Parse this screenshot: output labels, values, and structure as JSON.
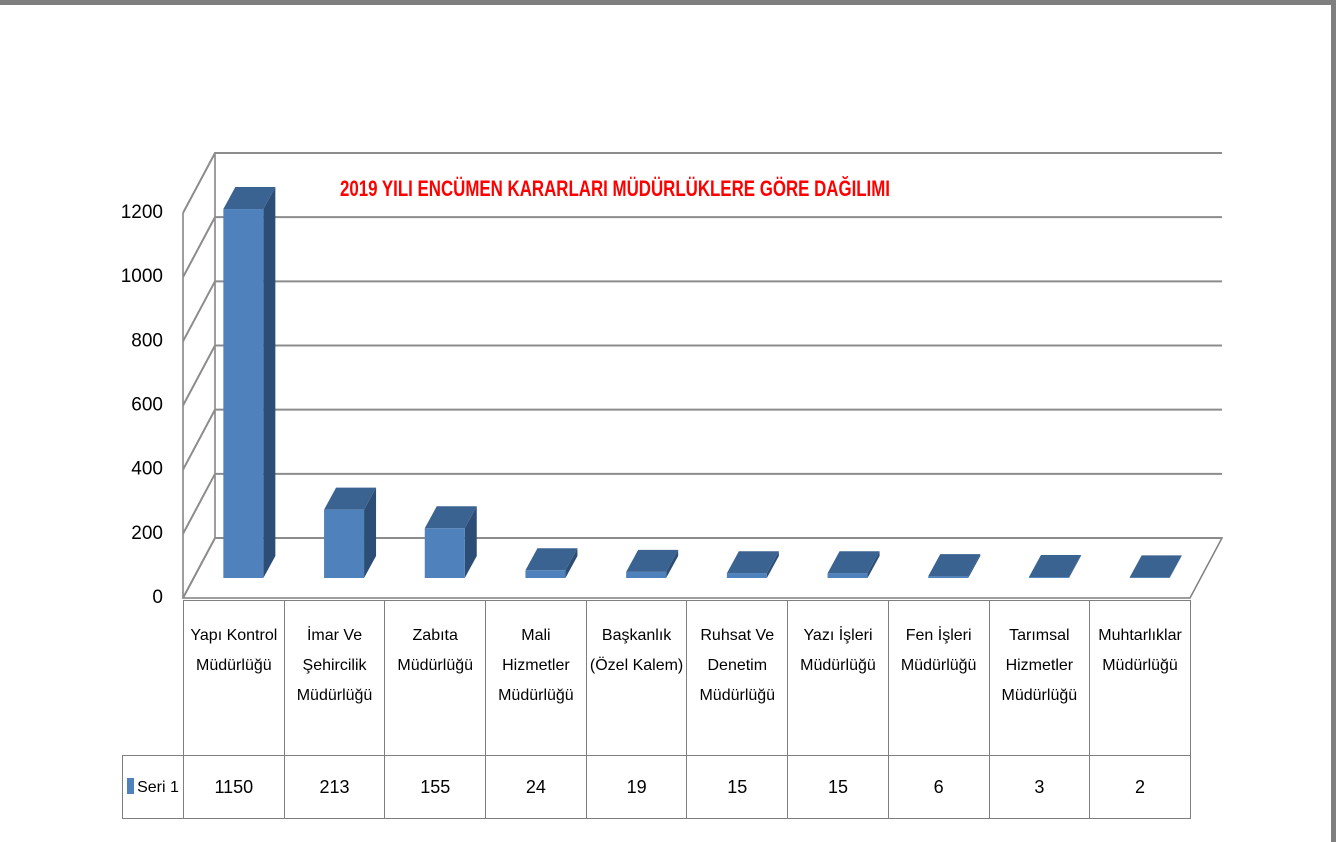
{
  "chart_data": {
    "type": "bar",
    "title": "2019 YILI ENCÜMEN KARARLARI MÜDÜRLÜKLERE GÖRE DAĞILIMI",
    "categories": [
      "Yapı Kontrol Müdürlüğü",
      "İmar Ve Şehircilik Müdürlüğü",
      "Zabıta Müdürlüğü",
      "Mali Hizmetler Müdürlüğü",
      "Başkanlık (Özel Kalem)",
      "Ruhsat Ve Denetim Müdürlüğü",
      "Yazı İşleri Müdürlüğü",
      "Fen İşleri Müdürlüğü",
      "Tarımsal Hizmetler Müdürlüğü",
      "Muhtarlıklar Müdürlüğü"
    ],
    "series": [
      {
        "name": "Seri 1",
        "color": "#4f81bd",
        "values": [
          1150,
          213,
          155,
          24,
          19,
          15,
          15,
          6,
          3,
          2
        ]
      }
    ],
    "ylim": [
      0,
      1200
    ],
    "yticks": [
      0,
      200,
      400,
      600,
      800,
      1000,
      1200
    ],
    "grid": true,
    "legend": "data-table"
  }
}
